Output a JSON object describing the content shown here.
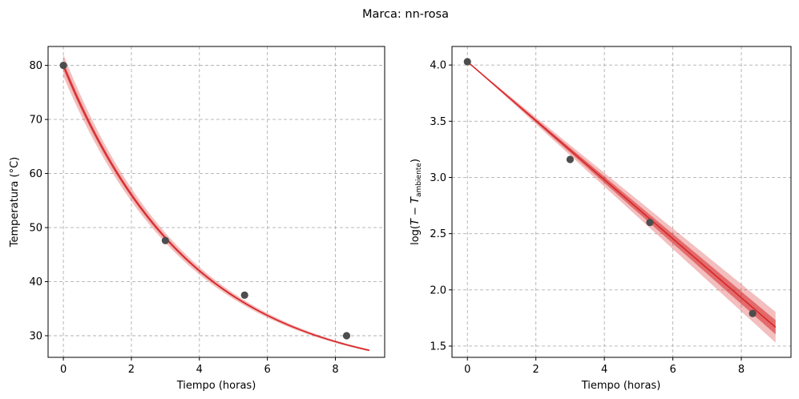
{
  "figure": {
    "suptitle": "Marca: nn-rosa"
  },
  "colors": {
    "line": "#d62728",
    "band": "#d62728",
    "points": "#4d4d4d",
    "grid": "#b0b0b0"
  },
  "chart_data": [
    {
      "type": "line",
      "panel": "left",
      "xlabel": "Tiempo (horas)",
      "ylabel": "Temperatura (°C)",
      "xlim": [
        -0.45,
        9.45
      ],
      "ylim": [
        26.0,
        83.5
      ],
      "xticks": [
        0,
        2,
        4,
        6,
        8
      ],
      "yticks": [
        30,
        40,
        50,
        60,
        70,
        80
      ],
      "grid": true,
      "points": {
        "x": [
          0,
          3,
          5.33,
          8.33
        ],
        "y": [
          80.0,
          47.6,
          37.5,
          30.0
        ]
      },
      "model": {
        "x0": 0,
        "x1": 9,
        "ambient": 22.0,
        "y0": 80.0,
        "k": 0.266
      },
      "band": {
        "type": "percent_of_excess",
        "inner": 0.012,
        "outer": 0.035,
        "inner_opacity": 0.55,
        "outer_opacity": 0.3
      }
    },
    {
      "type": "line",
      "panel": "right",
      "xlabel": "Tiempo (horas)",
      "ylabel_parts": {
        "prefix": "log(",
        "var": "T",
        "minus": " − ",
        "var2": "T",
        "sub": "ambiente",
        "suffix": ")"
      },
      "xlim": [
        -0.45,
        9.45
      ],
      "ylim": [
        1.4,
        4.165
      ],
      "xticks": [
        0,
        2,
        4,
        6,
        8
      ],
      "yticks": [
        1.5,
        2.0,
        2.5,
        3.0,
        3.5,
        4.0
      ],
      "grid": true,
      "points": {
        "x": [
          0,
          3,
          5.33,
          8.33
        ],
        "y": [
          4.03,
          3.16,
          2.6,
          1.79
        ]
      },
      "model": {
        "x0": 0,
        "x1": 9,
        "intercept": 4.03,
        "slope": -0.2625
      },
      "band": {
        "type": "growing",
        "inner_growth": 0.007,
        "outer_growth": 0.0152,
        "inner_opacity": 0.55,
        "outer_opacity": 0.3
      }
    }
  ]
}
